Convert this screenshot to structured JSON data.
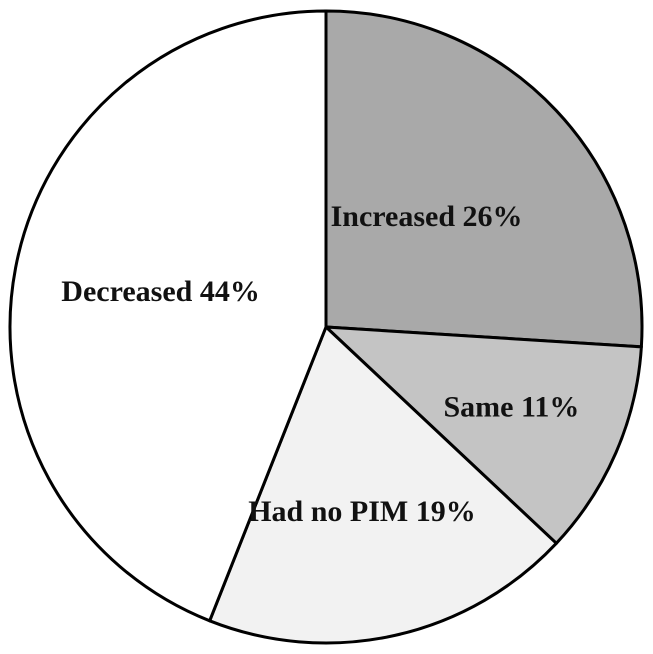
{
  "chart_data": {
    "type": "pie",
    "title": "",
    "slices": [
      {
        "label": "Increased 26%",
        "category": "Increased",
        "value": 26,
        "color": "#a9a9a9"
      },
      {
        "label": "Same 11%",
        "category": "Same",
        "value": 11,
        "color": "#c4c4c4"
      },
      {
        "label": "Had no PIM 19%",
        "category": "Had no PIM",
        "value": 19,
        "color": "#f2f2f2"
      },
      {
        "label": "Decreased 44%",
        "category": "Decreased",
        "value": 44,
        "color": "#ffffff"
      }
    ],
    "start_angle": "12 o'clock",
    "direction": "clockwise",
    "legend": "none"
  }
}
